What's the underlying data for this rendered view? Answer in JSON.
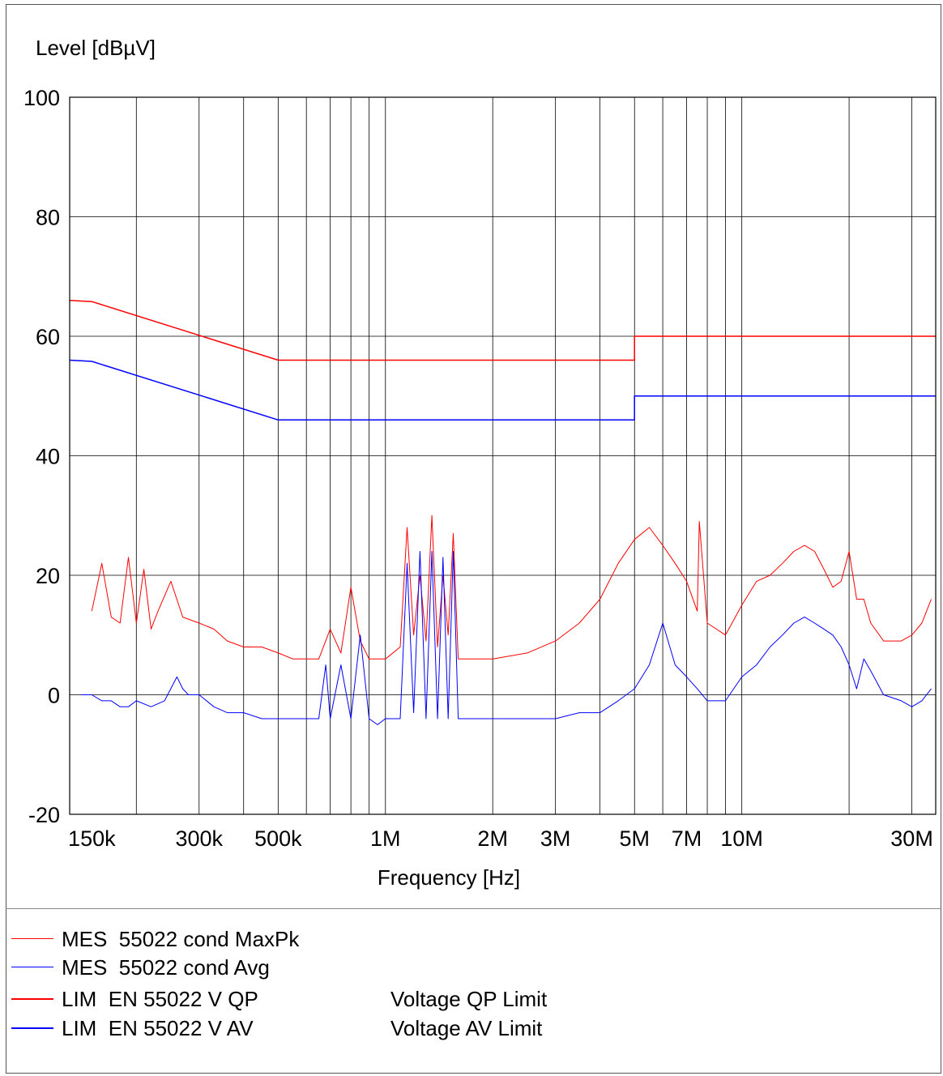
{
  "chart_data": {
    "type": "line",
    "ylabel": "Level [dBµV]",
    "xlabel": "Frequency [Hz]",
    "x_scale": "log",
    "xlim": [
      130000,
      35000000
    ],
    "ylim": [
      -20,
      100
    ],
    "y_ticks": [
      100,
      80,
      60,
      40,
      20,
      0,
      -20
    ],
    "x_ticks": [
      {
        "value": 150000,
        "label": "150k"
      },
      {
        "value": 300000,
        "label": "300k"
      },
      {
        "value": 500000,
        "label": "500k"
      },
      {
        "value": 1000000,
        "label": "1M"
      },
      {
        "value": 2000000,
        "label": "2M"
      },
      {
        "value": 3000000,
        "label": "3M"
      },
      {
        "value": 5000000,
        "label": "5M"
      },
      {
        "value": 7000000,
        "label": "7M"
      },
      {
        "value": 10000000,
        "label": "10M"
      },
      {
        "value": 30000000,
        "label": "30M"
      }
    ],
    "grid": true,
    "series": [
      {
        "name": "MES 55022 cond MaxPk",
        "color": "#ff0000",
        "x": [
          150000,
          160000,
          170000,
          180000,
          190000,
          200000,
          210000,
          220000,
          230000,
          250000,
          270000,
          300000,
          330000,
          360000,
          400000,
          450000,
          500000,
          550000,
          600000,
          650000,
          700000,
          750000,
          800000,
          850000,
          900000,
          950000,
          1000000,
          1100000,
          1150000,
          1200000,
          1250000,
          1300000,
          1350000,
          1400000,
          1450000,
          1500000,
          1550000,
          1600000,
          1700000,
          2000000,
          2500000,
          3000000,
          3500000,
          4000000,
          4500000,
          5000000,
          5500000,
          6000000,
          6500000,
          7000000,
          7500000,
          7600000,
          8000000,
          9000000,
          10000000,
          11000000,
          12000000,
          13000000,
          14000000,
          15000000,
          16000000,
          17000000,
          18000000,
          19000000,
          20000000,
          21000000,
          22000000,
          23000000,
          25000000,
          28000000,
          30000000,
          32000000,
          34000000
        ],
        "values": [
          14,
          22,
          13,
          12,
          23,
          12,
          21,
          11,
          14,
          19,
          13,
          12,
          11,
          9,
          8,
          8,
          7,
          6,
          6,
          6,
          11,
          7,
          18,
          9,
          6,
          6,
          6,
          8,
          28,
          10,
          20,
          9,
          30,
          8,
          20,
          10,
          27,
          6,
          6,
          6,
          7,
          9,
          12,
          16,
          22,
          26,
          28,
          25,
          22,
          19,
          14,
          29,
          12,
          10,
          15,
          19,
          20,
          22,
          24,
          25,
          24,
          21,
          18,
          19,
          24,
          16,
          16,
          12,
          9,
          9,
          10,
          12,
          16
        ]
      },
      {
        "name": "MES 55022 cond Avg",
        "color": "#0000ff",
        "x": [
          140000,
          150000,
          160000,
          170000,
          180000,
          190000,
          200000,
          220000,
          240000,
          260000,
          270000,
          280000,
          300000,
          330000,
          360000,
          400000,
          450000,
          500000,
          550000,
          600000,
          650000,
          680000,
          700000,
          750000,
          800000,
          850000,
          900000,
          950000,
          1000000,
          1100000,
          1150000,
          1200000,
          1250000,
          1300000,
          1350000,
          1400000,
          1450000,
          1500000,
          1550000,
          1600000,
          1650000,
          1700000,
          2000000,
          2500000,
          3000000,
          3500000,
          4000000,
          4500000,
          5000000,
          5500000,
          6000000,
          6500000,
          7000000,
          7500000,
          8000000,
          9000000,
          10000000,
          11000000,
          12000000,
          13000000,
          14000000,
          15000000,
          16000000,
          17000000,
          18000000,
          19000000,
          20000000,
          21000000,
          22000000,
          23000000,
          25000000,
          28000000,
          30000000,
          32000000,
          34000000
        ],
        "values": [
          0,
          0,
          -1,
          -1,
          -2,
          -2,
          -1,
          -2,
          -1,
          3,
          1,
          0,
          0,
          -2,
          -3,
          -3,
          -4,
          -4,
          -4,
          -4,
          -4,
          5,
          -4,
          5,
          -4,
          10,
          -4,
          -5,
          -4,
          -4,
          22,
          -3,
          24,
          -4,
          24,
          -4,
          23,
          -4,
          24,
          -4,
          -4,
          -4,
          -4,
          -4,
          -4,
          -3,
          -3,
          -1,
          1,
          5,
          12,
          5,
          3,
          1,
          -1,
          -1,
          3,
          5,
          8,
          10,
          12,
          13,
          12,
          11,
          10,
          8,
          5,
          1,
          6,
          4,
          0,
          -1,
          -2,
          -1,
          1
        ]
      },
      {
        "name": "LIM EN 55022 V QP",
        "color": "#ff0000",
        "x": [
          130000,
          150000,
          500000,
          5000000,
          5000000,
          35000000
        ],
        "values": [
          66,
          65.8,
          56,
          56,
          60,
          60
        ]
      },
      {
        "name": "LIM EN 55022 V AV",
        "color": "#0000ff",
        "x": [
          130000,
          150000,
          500000,
          5000000,
          5000000,
          35000000
        ],
        "values": [
          56,
          55.8,
          46,
          46,
          50,
          50
        ]
      }
    ]
  },
  "legend": [
    {
      "label": "MES  55022 cond MaxPk",
      "desc": "",
      "color": "#ff0000",
      "width": 1
    },
    {
      "label": "MES  55022 cond Avg",
      "desc": "",
      "color": "#0000ff",
      "width": 1
    },
    {
      "label": "LIM  EN 55022 V QP",
      "desc": "Voltage QP Limit",
      "color": "#ff0000",
      "width": 2
    },
    {
      "label": "LIM  EN 55022 V AV",
      "desc": "Voltage AV Limit",
      "color": "#0000ff",
      "width": 2
    }
  ]
}
